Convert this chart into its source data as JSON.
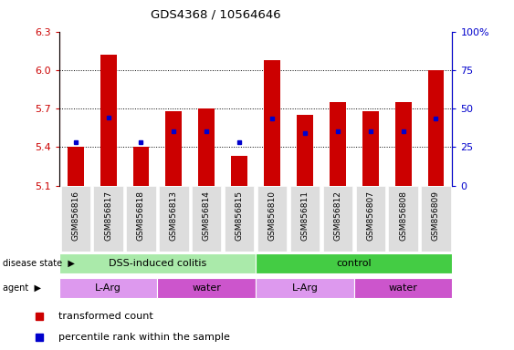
{
  "title": "GDS4368 / 10564646",
  "samples": [
    "GSM856816",
    "GSM856817",
    "GSM856818",
    "GSM856813",
    "GSM856814",
    "GSM856815",
    "GSM856810",
    "GSM856811",
    "GSM856812",
    "GSM856807",
    "GSM856808",
    "GSM856809"
  ],
  "bar_tops": [
    5.4,
    6.12,
    5.4,
    5.68,
    5.7,
    5.33,
    6.08,
    5.65,
    5.75,
    5.68,
    5.75,
    6.0
  ],
  "blue_dots": [
    5.435,
    5.63,
    5.435,
    5.52,
    5.52,
    5.435,
    5.62,
    5.505,
    5.525,
    5.52,
    5.525,
    5.62
  ],
  "ymin": 5.1,
  "ymax": 6.3,
  "yticks_left": [
    5.1,
    5.4,
    5.7,
    6.0,
    6.3
  ],
  "yticks_right_vals": [
    0,
    25,
    50,
    75,
    100
  ],
  "yticks_right_labels": [
    "0",
    "25",
    "50",
    "75",
    "100%"
  ],
  "bar_color": "#cc0000",
  "dot_color": "#0000cc",
  "bar_baseline": 5.1,
  "disease_state_groups": [
    {
      "label": "DSS-induced colitis",
      "xstart": -0.5,
      "xend": 5.5,
      "color": "#aaeaaa"
    },
    {
      "label": "control",
      "xstart": 5.5,
      "xend": 11.5,
      "color": "#44cc44"
    }
  ],
  "agent_groups": [
    {
      "label": "L-Arg",
      "xstart": -0.5,
      "xend": 2.5,
      "color": "#dd99ee"
    },
    {
      "label": "water",
      "xstart": 2.5,
      "xend": 5.5,
      "color": "#cc55cc"
    },
    {
      "label": "L-Arg",
      "xstart": 5.5,
      "xend": 8.5,
      "color": "#dd99ee"
    },
    {
      "label": "water",
      "xstart": 8.5,
      "xend": 11.5,
      "color": "#cc55cc"
    }
  ],
  "left_axis_color": "#cc0000",
  "right_axis_color": "#0000cc"
}
